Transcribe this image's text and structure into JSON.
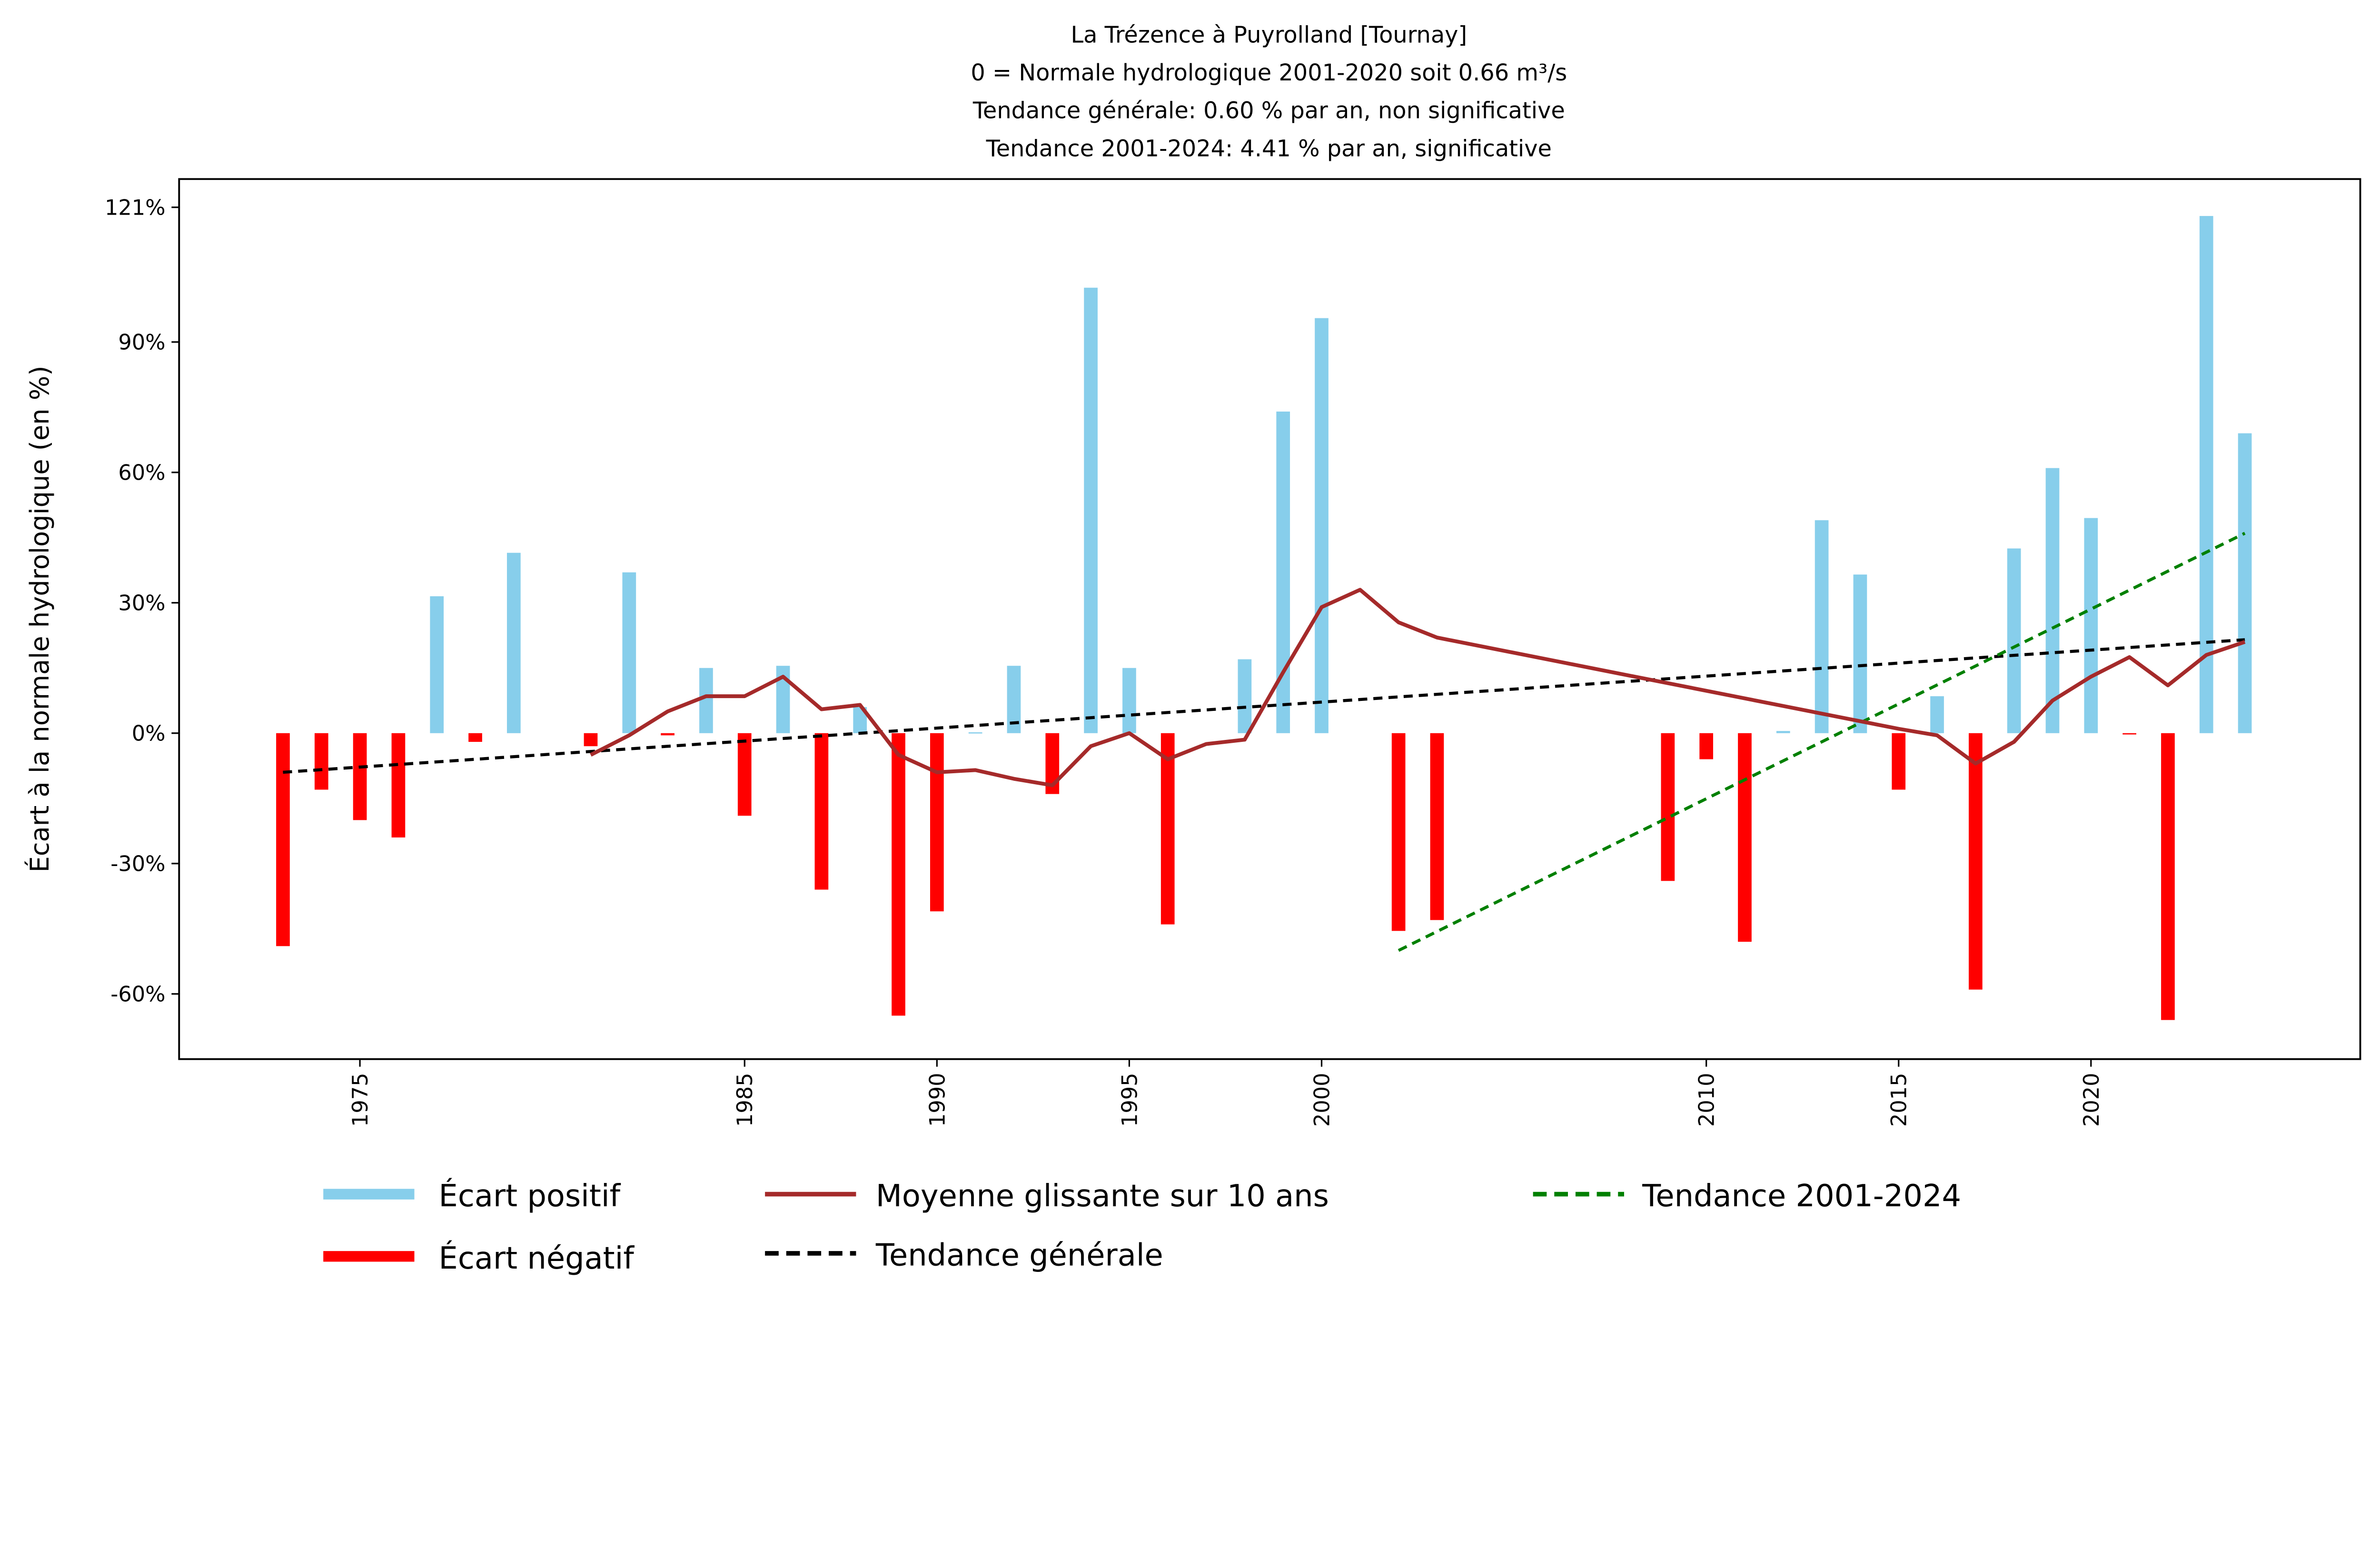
{
  "chart_data": {
    "type": "bar",
    "title_lines": [
      "La Trézence à Puyrolland [Tournay]",
      "0 = Normale hydrologique 2001-2020 soit 0.66 m³/s",
      "Tendance générale: 0.60 % par an, non significative",
      "Tendance 2001-2024: 4.41 % par an, significative"
    ],
    "ylabel": "Écart à la normale hydrologique (en %)",
    "xlabel": "",
    "xlim": [
      1970.3,
      2027.0
    ],
    "ylim": [
      -75,
      127.5
    ],
    "xticks": [
      1975,
      1985,
      1990,
      1995,
      2000,
      2010,
      2015,
      2020
    ],
    "yticks": [
      121,
      90,
      60,
      30,
      0,
      -30,
      -60
    ],
    "ytick_labels": [
      "121%",
      "90%",
      "60%",
      "30%",
      "0%",
      "-30%",
      "-60%"
    ],
    "grid": false,
    "legend_position": "bottom",
    "colors": {
      "positive": "#87CEEB",
      "negative": "#FF0000",
      "moving_avg": "#A52A2A",
      "trend_general": "#000000",
      "trend_recent": "#008000"
    },
    "bars": {
      "years": [
        1973,
        1974,
        1975,
        1976,
        1977,
        1978,
        1979,
        1981,
        1982,
        1983,
        1984,
        1985,
        1986,
        1987,
        1988,
        1989,
        1990,
        1991,
        1992,
        1993,
        1994,
        1995,
        1996,
        1998,
        1999,
        2000,
        2002,
        2003,
        2009,
        2010,
        2011,
        2012,
        2013,
        2014,
        2015,
        2016,
        2017,
        2018,
        2019,
        2020,
        2021,
        2022,
        2023,
        2024
      ],
      "values": [
        -49,
        -13,
        -20,
        -24,
        31.5,
        -2,
        41.5,
        -3,
        37,
        -0.5,
        15,
        -19,
        15.5,
        -36,
        6,
        -65,
        -41,
        0.2,
        15.5,
        -14,
        102.5,
        15,
        -44,
        17,
        74,
        95.5,
        -45.5,
        -43,
        -34,
        -6,
        -48,
        0.5,
        49,
        36.5,
        -13,
        8.5,
        -59,
        42.5,
        61,
        49.5,
        -0.3,
        -66,
        119,
        69
      ]
    },
    "moving_average": {
      "name": "Moyenne glissante sur 10 ans",
      "years": [
        1981,
        1982,
        1983,
        1984,
        1985,
        1986,
        1987,
        1988,
        1989,
        1990,
        1991,
        1992,
        1993,
        1994,
        1995,
        1996,
        1997,
        1998,
        1999,
        2000,
        2001,
        2002,
        2003,
        2015,
        2016,
        2017,
        2018,
        2019,
        2020,
        2021,
        2022,
        2023,
        2024
      ],
      "values": [
        -5,
        -0.5,
        5,
        8.5,
        8.5,
        13,
        5.5,
        6.5,
        -5,
        -9,
        -8.5,
        -10.5,
        -12,
        -3,
        0,
        -6,
        -2.5,
        -1.5,
        14,
        29,
        33,
        25.5,
        22,
        1,
        -0.5,
        -7,
        -2,
        7.5,
        13,
        17.5,
        11,
        18,
        21
      ]
    },
    "trend_general": {
      "name": "Tendance générale",
      "years": [
        1973,
        2024
      ],
      "values": [
        -9,
        21.5
      ]
    },
    "trend_recent": {
      "name": "Tendance 2001-2024",
      "years": [
        2002,
        2024
      ],
      "values": [
        -50,
        46
      ]
    },
    "legend": [
      "Écart positif",
      "Écart négatif",
      "Moyenne glissante sur 10 ans",
      "Tendance générale",
      "Tendance 2001-2024"
    ]
  }
}
